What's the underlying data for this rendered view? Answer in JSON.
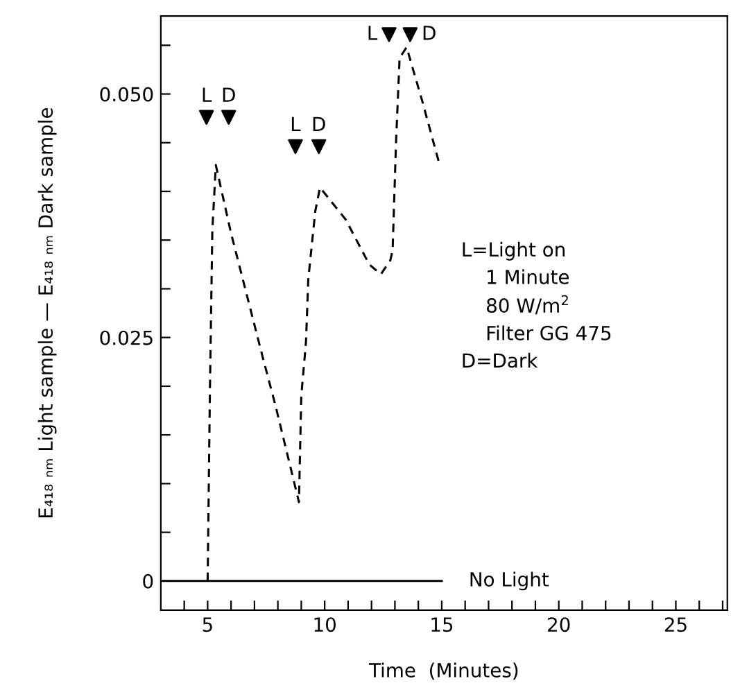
{
  "chart_data": {
    "type": "line",
    "xlabel": "Time  (Minutes)",
    "ylabel": "E₄₁₈ ₙₘ Light sample — E₄₁₈ ₙₘ Dark sample",
    "xlim": [
      3,
      27.2
    ],
    "ylim": [
      -0.003,
      0.058
    ],
    "xticks": [
      {
        "value": 4,
        "label": null
      },
      5,
      {
        "value": 6,
        "label": null
      },
      {
        "value": 7,
        "label": null
      },
      {
        "value": 8,
        "label": null
      },
      {
        "value": 9,
        "label": null
      },
      10,
      {
        "value": 11,
        "label": null
      },
      {
        "value": 12,
        "label": null
      },
      {
        "value": 13,
        "label": null
      },
      {
        "value": 14,
        "label": null
      },
      15,
      {
        "value": 16,
        "label": null
      },
      {
        "value": 17,
        "label": null
      },
      {
        "value": 18,
        "label": null
      },
      {
        "value": 19,
        "label": null
      },
      20,
      {
        "value": 21,
        "label": null
      },
      {
        "value": 22,
        "label": null
      },
      {
        "value": 23,
        "label": null
      },
      {
        "value": 24,
        "label": null
      },
      25,
      {
        "value": 26,
        "label": null
      },
      {
        "value": 27,
        "label": null
      }
    ],
    "yticks": [
      {
        "value": 0,
        "label": "0"
      },
      {
        "value": 0.005,
        "label": null
      },
      {
        "value": 0.01,
        "label": null
      },
      {
        "value": 0.015,
        "label": null
      },
      {
        "value": 0.02,
        "label": null
      },
      {
        "value": 0.025,
        "label": "0.025"
      },
      {
        "value": 0.03,
        "label": null
      },
      {
        "value": 0.035,
        "label": null
      },
      {
        "value": 0.04,
        "label": null
      },
      {
        "value": 0.045,
        "label": null
      },
      {
        "value": 0.05,
        "label": "0.050"
      },
      {
        "value": 0.055,
        "label": null
      }
    ],
    "grid": false,
    "legend": false,
    "series": [
      {
        "line_style": "dashed",
        "color": "#000000",
        "x": [
          5.0,
          5.1,
          5.2,
          5.35,
          6.0,
          7.35,
          7.9,
          8.9,
          9.0,
          9.2,
          9.3,
          9.6,
          9.8,
          10.9,
          11.6,
          11.9,
          12.4,
          12.8,
          12.9,
          13.05,
          13.2,
          13.5,
          14.2,
          14.9
        ],
        "values": [
          0,
          0.02,
          0.036,
          0.0427,
          0.0357,
          0.023,
          0.018,
          0.0081,
          0.019,
          0.0245,
          0.031,
          0.038,
          0.0404,
          0.0371,
          0.0339,
          0.0325,
          0.0315,
          0.0329,
          0.0339,
          0.0452,
          0.0537,
          0.0548,
          0.049,
          0.0428
        ]
      },
      {
        "type": "line",
        "line_style": "solid",
        "color": "#000000",
        "x": [
          3,
          15
        ],
        "values": [
          0,
          0
        ]
      },
      {
        "type": "scatter",
        "marker": "triangle",
        "color": "#000000",
        "x": [
          4.95,
          5.9,
          8.75,
          9.75,
          12.75,
          13.65
        ],
        "values": [
          0.0476,
          0.0476,
          0.0446,
          0.0446,
          0.0561,
          0.0561
        ]
      }
    ],
    "annotations": [
      {
        "text": "L",
        "x": 4.95,
        "y": 0.0476
      },
      {
        "text": "D",
        "x": 5.9,
        "y": 0.0476
      },
      {
        "text": "L",
        "x": 8.75,
        "y": 0.0446
      },
      {
        "text": "D",
        "x": 9.75,
        "y": 0.0446
      },
      {
        "text": "L",
        "x": 12.75,
        "y": 0.0561
      },
      {
        "text": "D",
        "x": 13.65,
        "y": 0.0561
      },
      "No Light",
      "L=Light on\n    1 Minute\n    80 W/m$^{2}$\n    Filter GG 475\nD=Dark"
    ]
  }
}
